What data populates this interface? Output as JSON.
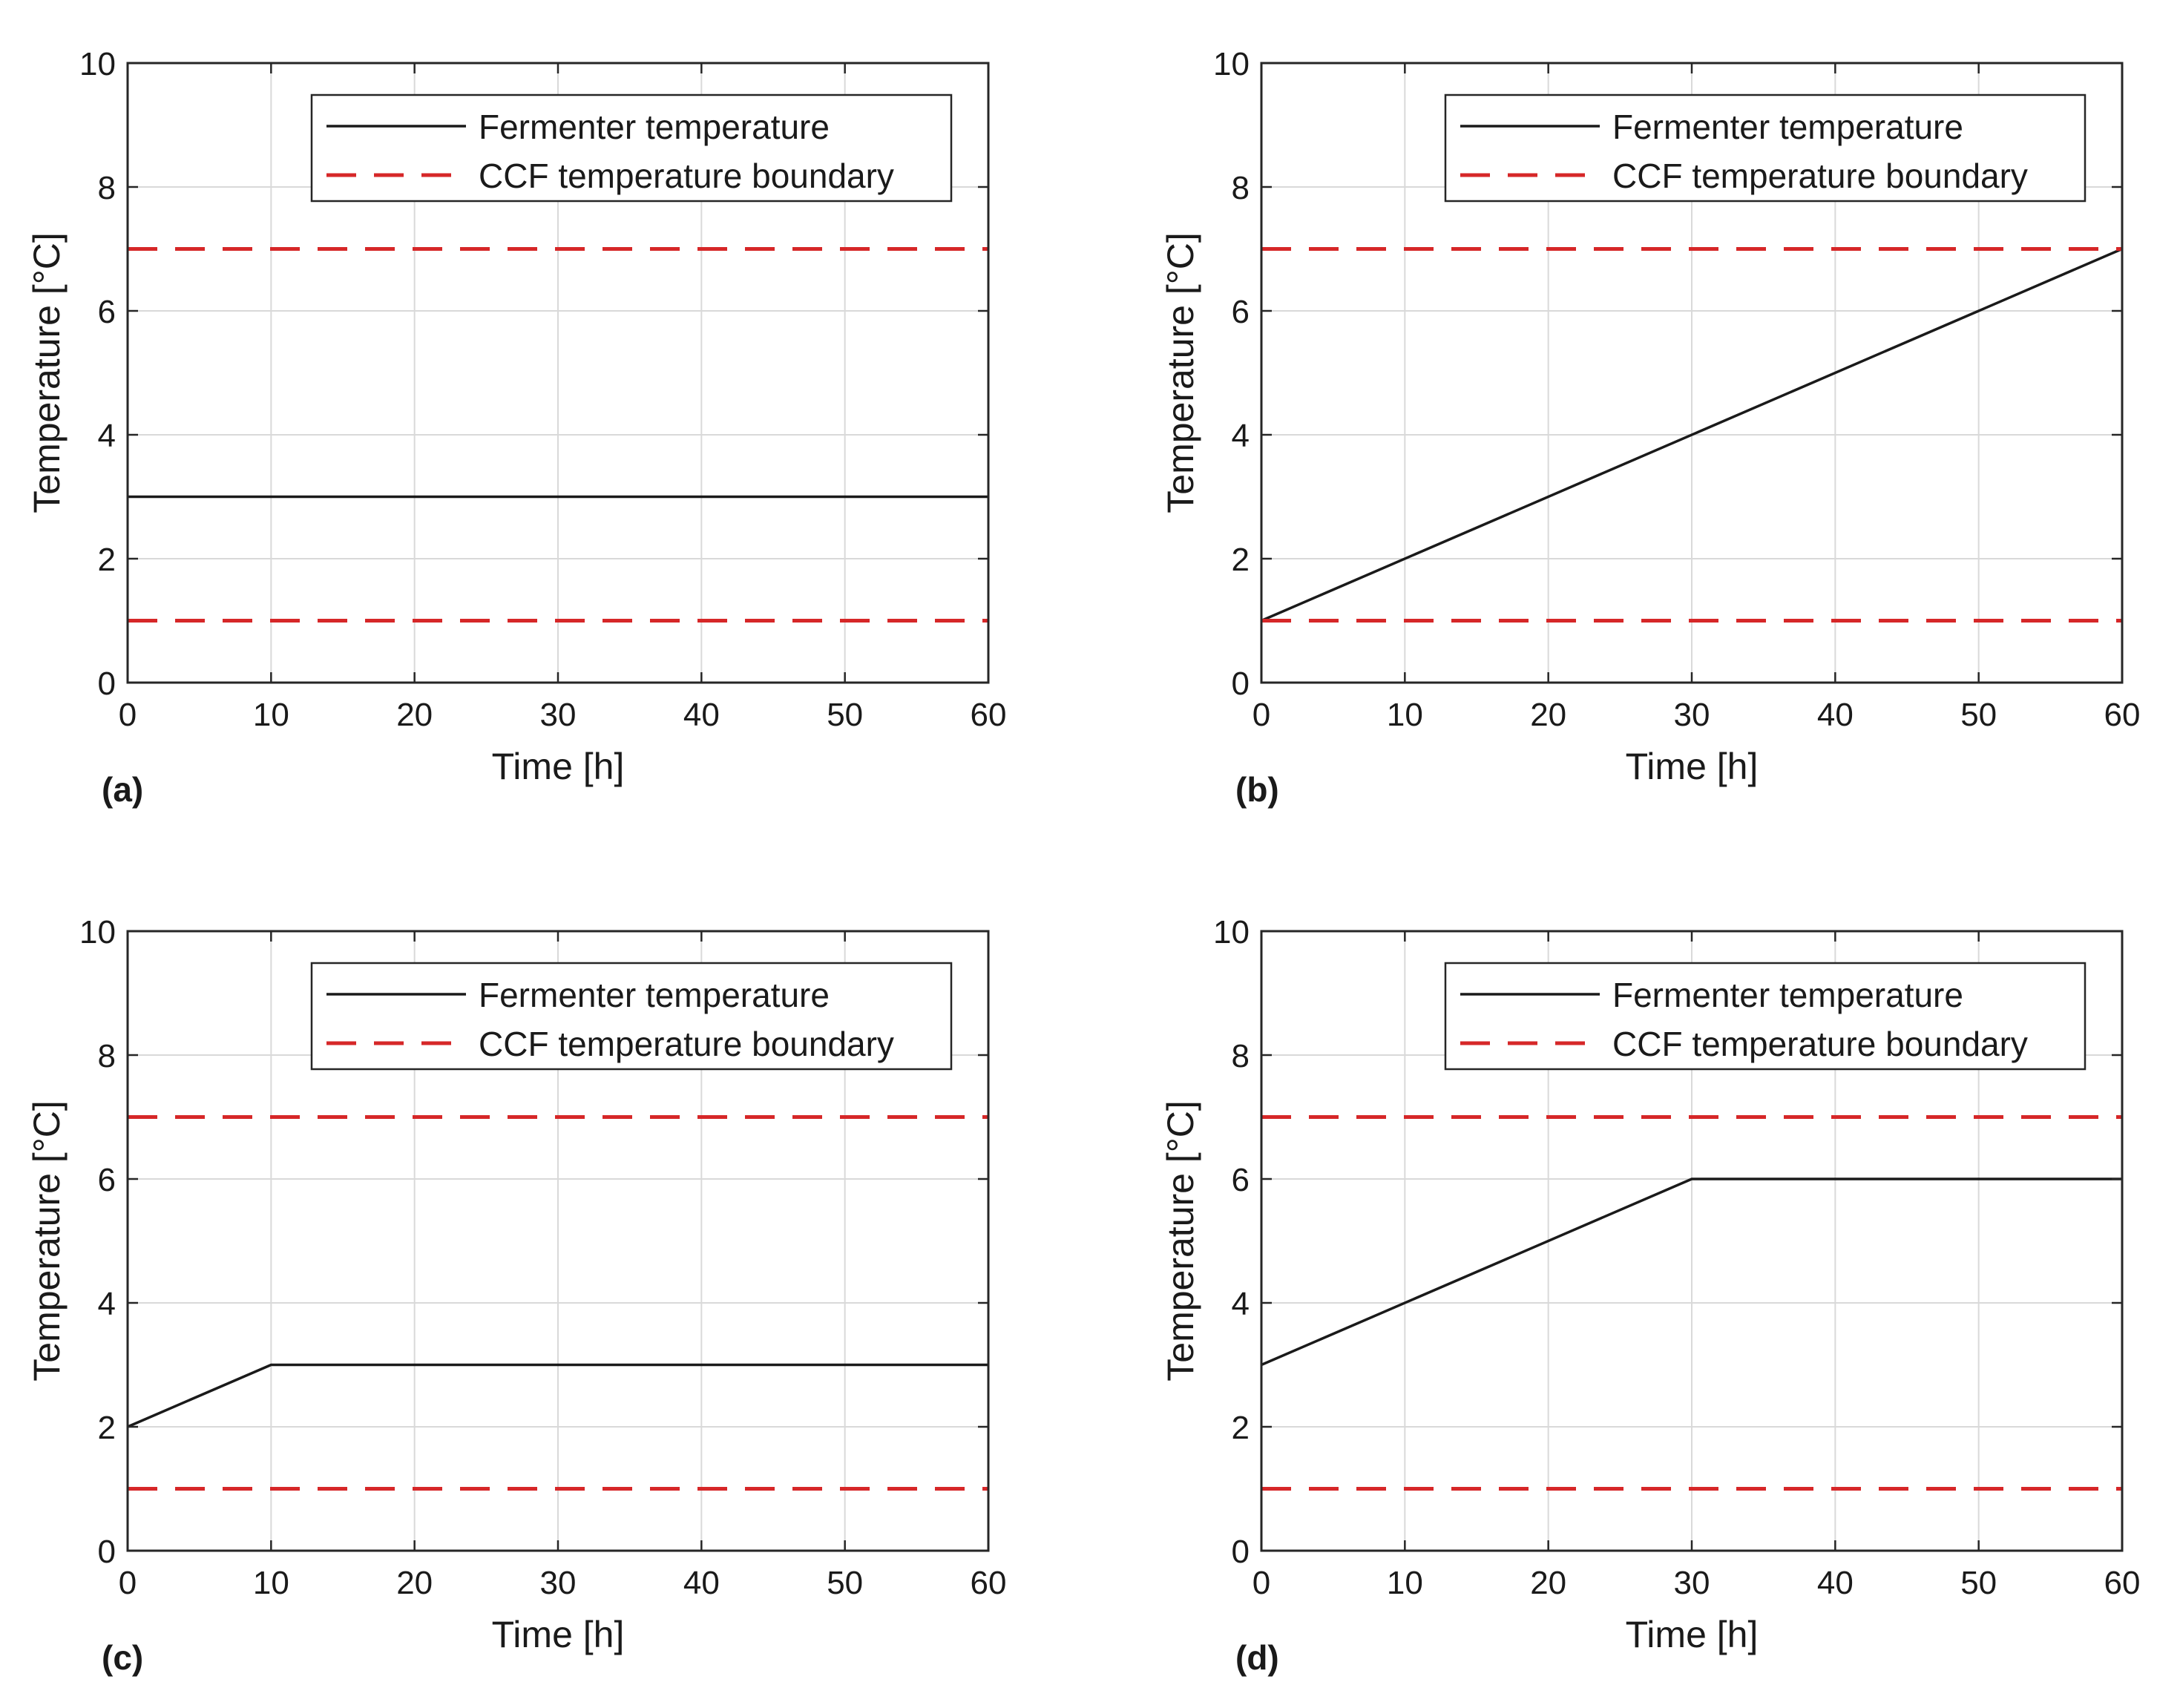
{
  "colors": {
    "fermenter_line": "#1a1a1a",
    "boundary_line": "#d62728",
    "grid": "#d9d9d9",
    "axes": "#262626",
    "background": "#ffffff"
  },
  "chart_data": [
    {
      "type": "line",
      "panel_label": "(a)",
      "xlabel": "Time [h]",
      "ylabel": "Temperature [°C]",
      "xlim": [
        0,
        60
      ],
      "ylim": [
        0,
        10
      ],
      "xticks": [
        "0",
        "10",
        "20",
        "30",
        "40",
        "50",
        "60"
      ],
      "yticks": [
        "0",
        "2",
        "4",
        "6",
        "8",
        "10"
      ],
      "grid": true,
      "legend_position": "top-right",
      "series": [
        {
          "name": "Fermenter temperature",
          "style": "solid",
          "x": [
            0,
            60
          ],
          "y": [
            3,
            3
          ]
        },
        {
          "name": "CCF temperature boundary",
          "style": "dashed",
          "x": [
            0,
            60
          ],
          "y": [
            7,
            7
          ]
        },
        {
          "name": "CCF temperature boundary",
          "style": "dashed",
          "x": [
            0,
            60
          ],
          "y": [
            1,
            1
          ]
        }
      ]
    },
    {
      "type": "line",
      "panel_label": "(b)",
      "xlabel": "Time [h]",
      "ylabel": "Temperature [°C]",
      "xlim": [
        0,
        60
      ],
      "ylim": [
        0,
        10
      ],
      "xticks": [
        "0",
        "10",
        "20",
        "30",
        "40",
        "50",
        "60"
      ],
      "yticks": [
        "0",
        "2",
        "4",
        "6",
        "8",
        "10"
      ],
      "grid": true,
      "legend_position": "top-right",
      "series": [
        {
          "name": "Fermenter temperature",
          "style": "solid",
          "x": [
            0,
            60
          ],
          "y": [
            1,
            7
          ]
        },
        {
          "name": "CCF temperature boundary",
          "style": "dashed",
          "x": [
            0,
            60
          ],
          "y": [
            7,
            7
          ]
        },
        {
          "name": "CCF temperature boundary",
          "style": "dashed",
          "x": [
            0,
            60
          ],
          "y": [
            1,
            1
          ]
        }
      ]
    },
    {
      "type": "line",
      "panel_label": "(c)",
      "xlabel": "Time [h]",
      "ylabel": "Temperature [°C]",
      "xlim": [
        0,
        60
      ],
      "ylim": [
        0,
        10
      ],
      "xticks": [
        "0",
        "10",
        "20",
        "30",
        "40",
        "50",
        "60"
      ],
      "yticks": [
        "0",
        "2",
        "4",
        "6",
        "8",
        "10"
      ],
      "grid": true,
      "legend_position": "top-right",
      "series": [
        {
          "name": "Fermenter temperature",
          "style": "solid",
          "x": [
            0,
            10,
            60
          ],
          "y": [
            2,
            3,
            3
          ]
        },
        {
          "name": "CCF temperature boundary",
          "style": "dashed",
          "x": [
            0,
            60
          ],
          "y": [
            7,
            7
          ]
        },
        {
          "name": "CCF temperature boundary",
          "style": "dashed",
          "x": [
            0,
            60
          ],
          "y": [
            1,
            1
          ]
        }
      ]
    },
    {
      "type": "line",
      "panel_label": "(d)",
      "xlabel": "Time [h]",
      "ylabel": "Temperature [°C]",
      "xlim": [
        0,
        60
      ],
      "ylim": [
        0,
        10
      ],
      "xticks": [
        "0",
        "10",
        "20",
        "30",
        "40",
        "50",
        "60"
      ],
      "yticks": [
        "0",
        "2",
        "4",
        "6",
        "8",
        "10"
      ],
      "grid": true,
      "legend_position": "top-right",
      "series": [
        {
          "name": "Fermenter temperature",
          "style": "solid",
          "x": [
            0,
            30,
            60
          ],
          "y": [
            3,
            6,
            6
          ]
        },
        {
          "name": "CCF temperature boundary",
          "style": "dashed",
          "x": [
            0,
            60
          ],
          "y": [
            7,
            7
          ]
        },
        {
          "name": "CCF temperature boundary",
          "style": "dashed",
          "x": [
            0,
            60
          ],
          "y": [
            1,
            1
          ]
        }
      ]
    }
  ]
}
